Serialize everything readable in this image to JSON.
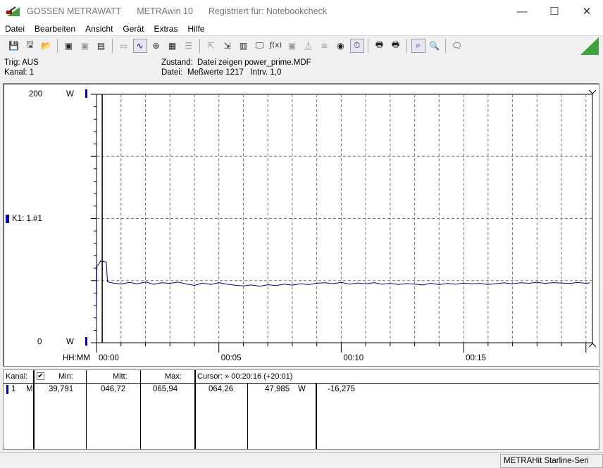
{
  "titlebar": {
    "brand": "GOSSEN METRAWATT",
    "app": "METRAwin 10",
    "registered": "Registriert für: Notebookcheck",
    "minimize": "—",
    "maximize": "☐",
    "close": "✕"
  },
  "menu": [
    "Datei",
    "Bearbeiten",
    "Ansicht",
    "Gerät",
    "Extras",
    "Hilfe"
  ],
  "toolbar": {
    "icons": [
      "save-icon",
      "save-as-icon",
      "open-icon",
      "device-read-icon",
      "device-read-2-icon",
      "memory-icon",
      "display-icon",
      "line-chart-icon",
      "crosshair-icon",
      "table-icon",
      "list-icon",
      "export-icon",
      "import-icon",
      "data-icon",
      "monitor-icon",
      "function-icon",
      "device-icon",
      "trigger-icon",
      "wave-icon",
      "record-icon",
      "timer-icon",
      "print-icon",
      "print-preview-icon",
      "zoom-wave-icon",
      "zoom-icon",
      "comment-icon"
    ],
    "accent": "#3ca33c"
  },
  "info": {
    "trig": "Trig: AUS",
    "kanal": "Kanal: 1",
    "zustand_label": "Zustand:",
    "zustand_value": "Datei zeigen power_prime.MDF",
    "datei_label": "Datei:",
    "datei_value": "Meßwerte 1217   Intrv. 1,0"
  },
  "chart_data": {
    "type": "line",
    "ylim": [
      0,
      200
    ],
    "y_top_label": "200",
    "y_bottom_label": "0",
    "y_unit": "W",
    "channel_label": "K1: 1.#1",
    "x_axis_label": "HH:MM",
    "x_ticks": [
      "00:00",
      "00:05",
      "00:10",
      "00:15"
    ],
    "xlim": [
      "00:00:00",
      "00:20:16"
    ],
    "grid": true,
    "cursor_time": "00:00:14",
    "series_color": "#0000a0",
    "points": [
      [
        "00:00:00",
        20
      ],
      [
        "00:00:01",
        62
      ],
      [
        "00:00:05",
        63
      ],
      [
        "00:00:10",
        65.9
      ],
      [
        "00:00:24",
        65
      ],
      [
        "00:00:27",
        49
      ],
      [
        "00:00:40",
        48.1
      ],
      [
        "00:01:00",
        47.2
      ],
      [
        "00:01:20",
        48.6
      ],
      [
        "00:01:40",
        47.5
      ],
      [
        "00:02:00",
        48.9
      ],
      [
        "00:02:20",
        47.0
      ],
      [
        "00:02:40",
        48.3
      ],
      [
        "00:03:00",
        47.8
      ],
      [
        "00:03:20",
        48.8
      ],
      [
        "00:03:40",
        47.3
      ],
      [
        "00:04:00",
        46.2
      ],
      [
        "00:04:20",
        48.0
      ],
      [
        "00:04:40",
        46.9
      ],
      [
        "00:05:00",
        48.4
      ],
      [
        "00:05:20",
        47.1
      ],
      [
        "00:05:40",
        46.3
      ],
      [
        "00:06:00",
        45.8
      ],
      [
        "00:06:20",
        46.5
      ],
      [
        "00:06:40",
        45.5
      ],
      [
        "00:07:00",
        46.7
      ],
      [
        "00:07:20",
        46.0
      ],
      [
        "00:07:40",
        47.2
      ],
      [
        "00:08:00",
        46.4
      ],
      [
        "00:08:20",
        47.5
      ],
      [
        "00:08:40",
        46.8
      ],
      [
        "00:09:00",
        47.9
      ],
      [
        "00:09:20",
        48.3
      ],
      [
        "00:09:40",
        47.6
      ],
      [
        "00:10:00",
        48.6
      ],
      [
        "00:10:20",
        47.2
      ],
      [
        "00:10:40",
        48.1
      ],
      [
        "00:11:00",
        47.5
      ],
      [
        "00:11:20",
        48.4
      ],
      [
        "00:11:40",
        47.1
      ],
      [
        "00:12:00",
        47.8
      ],
      [
        "00:12:20",
        46.9
      ],
      [
        "00:12:40",
        47.6
      ],
      [
        "00:13:00",
        47.2
      ],
      [
        "00:13:20",
        46.5
      ],
      [
        "00:13:40",
        47.9
      ],
      [
        "00:14:00",
        46.8
      ],
      [
        "00:14:20",
        47.7
      ],
      [
        "00:14:40",
        47.1
      ],
      [
        "00:15:00",
        48.0
      ],
      [
        "00:15:20",
        47.4
      ],
      [
        "00:15:40",
        47.8
      ],
      [
        "00:16:00",
        46.9
      ],
      [
        "00:16:20",
        47.6
      ],
      [
        "00:16:40",
        48.2
      ],
      [
        "00:17:00",
        47.5
      ],
      [
        "00:17:20",
        48.3
      ],
      [
        "00:17:40",
        47.9
      ],
      [
        "00:18:00",
        48.6
      ],
      [
        "00:18:20",
        47.8
      ],
      [
        "00:18:40",
        48.4
      ],
      [
        "00:19:00",
        48.1
      ],
      [
        "00:19:20",
        47.7
      ],
      [
        "00:19:40",
        48.5
      ],
      [
        "00:20:00",
        47.9
      ],
      [
        "00:20:10",
        48.2
      ]
    ]
  },
  "table": {
    "headers": {
      "kanal": "Kanal:",
      "min": "Min:",
      "mitt": "Mitt:",
      "max": "Max:",
      "cursor": "Cursor: » 00:20:16 (+20:01)"
    },
    "rows": [
      {
        "channel": "1",
        "mode": "M",
        "min": "39,791",
        "mitt": "046,72",
        "max": "065,94",
        "cursor_val": "064,26",
        "value": "47,985",
        "unit": "W",
        "diff": "-16,275"
      }
    ]
  },
  "status": {
    "device": "METRAHit Starline-Seri"
  }
}
